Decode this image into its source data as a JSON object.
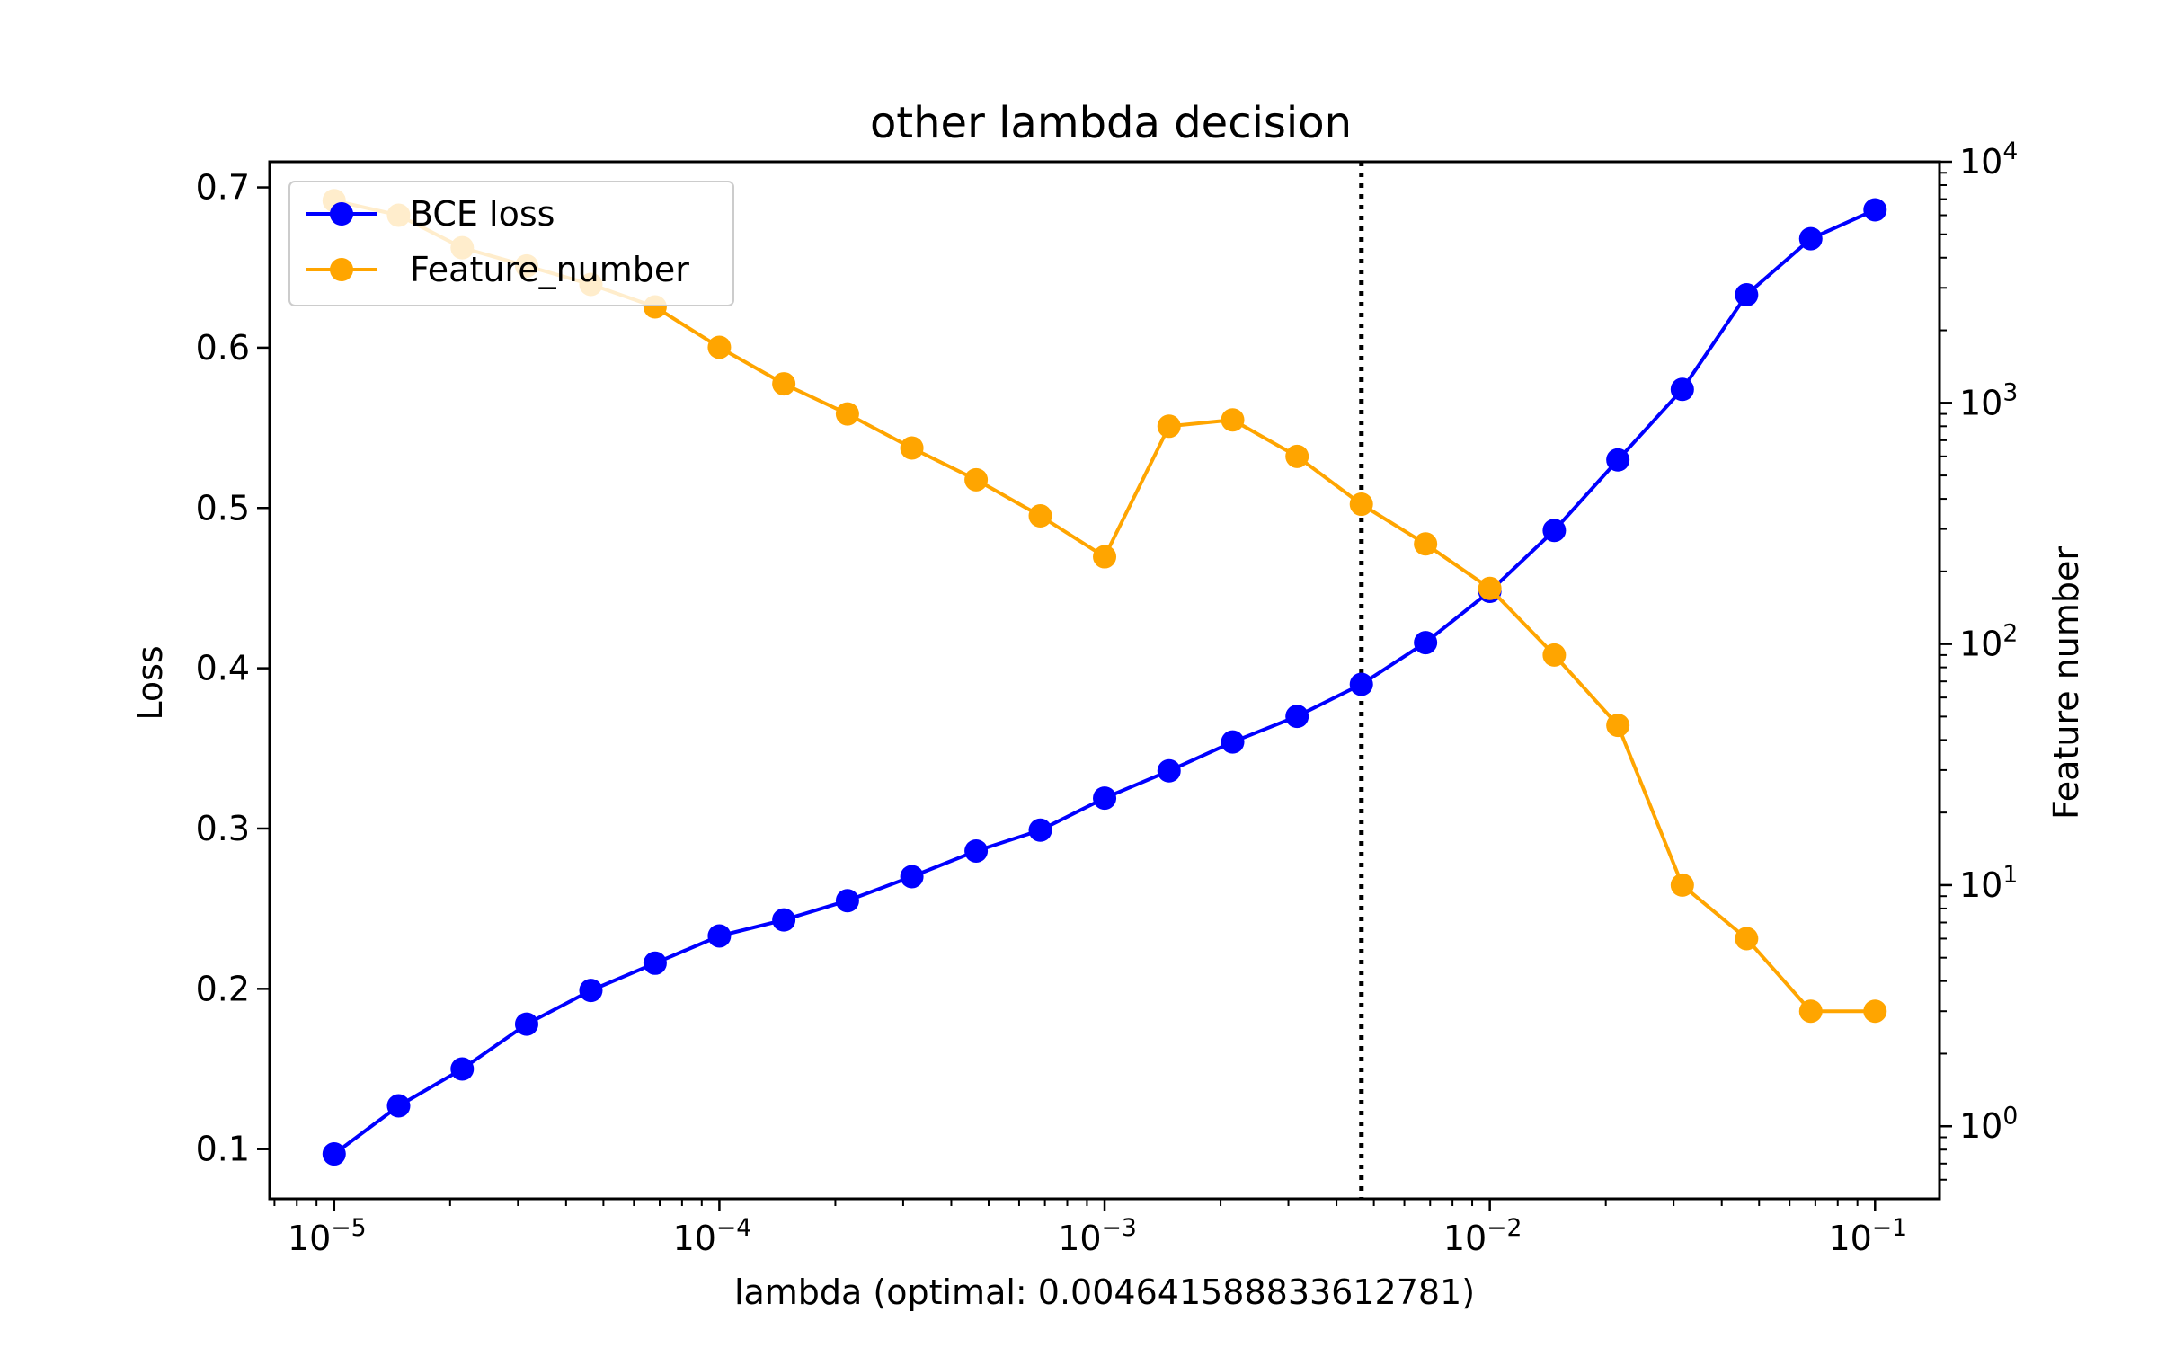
{
  "chart_data": {
    "type": "line",
    "title": "other lambda decision",
    "xlabel": "lambda (optimal: 0.004641588833612781)",
    "ylabel": "Loss",
    "y2label": "Feature number",
    "xscale": "log",
    "xlim": [
      6.8e-06,
      0.147
    ],
    "ylim": [
      0.069,
      0.716
    ],
    "y2scale": "log",
    "y2lim": [
      0.5,
      10000
    ],
    "x_ticks": [
      {
        "value": 1e-05,
        "base": "10",
        "exp": "−5"
      },
      {
        "value": 0.0001,
        "base": "10",
        "exp": "−4"
      },
      {
        "value": 0.001,
        "base": "10",
        "exp": "−3"
      },
      {
        "value": 0.01,
        "base": "10",
        "exp": "−2"
      },
      {
        "value": 0.1,
        "base": "10",
        "exp": "−1"
      }
    ],
    "y_ticks": [
      {
        "value": 0.1,
        "label": "0.1"
      },
      {
        "value": 0.2,
        "label": "0.2"
      },
      {
        "value": 0.3,
        "label": "0.3"
      },
      {
        "value": 0.4,
        "label": "0.4"
      },
      {
        "value": 0.5,
        "label": "0.5"
      },
      {
        "value": 0.6,
        "label": "0.6"
      },
      {
        "value": 0.7,
        "label": "0.7"
      }
    ],
    "y2_ticks": [
      {
        "value": 1,
        "base": "10",
        "exp": "0"
      },
      {
        "value": 10,
        "base": "10",
        "exp": "1"
      },
      {
        "value": 100,
        "base": "10",
        "exp": "2"
      },
      {
        "value": 1000,
        "base": "10",
        "exp": "3"
      },
      {
        "value": 10000,
        "base": "10",
        "exp": "4"
      }
    ],
    "x": [
      1e-05,
      1.47e-05,
      2.15e-05,
      3.16e-05,
      4.64e-05,
      6.81e-05,
      0.0001,
      0.000147,
      0.000215,
      0.000316,
      0.000464,
      0.000681,
      0.001,
      0.00147,
      0.00215,
      0.00316,
      0.00464,
      0.00681,
      0.01,
      0.0147,
      0.0215,
      0.0316,
      0.0464,
      0.0681,
      0.1
    ],
    "series": [
      {
        "name": "BCE loss",
        "axis": "left",
        "color": "#0000ff",
        "values": [
          0.097,
          0.127,
          0.15,
          0.178,
          0.199,
          0.216,
          0.233,
          0.243,
          0.255,
          0.27,
          0.286,
          0.299,
          0.319,
          0.336,
          0.354,
          0.37,
          0.39,
          0.416,
          0.448,
          0.486,
          0.53,
          0.574,
          0.633,
          0.668,
          0.686
        ]
      },
      {
        "name": "Feature_number",
        "axis": "right",
        "color": "#ffa500",
        "values": [
          6900,
          6000,
          4400,
          3700,
          3100,
          2500,
          1700,
          1200,
          900,
          650,
          480,
          340,
          230,
          800,
          850,
          600,
          380,
          260,
          170,
          90,
          46,
          10,
          6,
          3,
          3
        ]
      }
    ],
    "vline": {
      "x": 0.004641588833612781,
      "style": "dotted",
      "color": "#000000"
    },
    "legend": {
      "position": "top-left",
      "items": [
        "BCE loss",
        "Feature_number"
      ]
    },
    "grid": false
  }
}
